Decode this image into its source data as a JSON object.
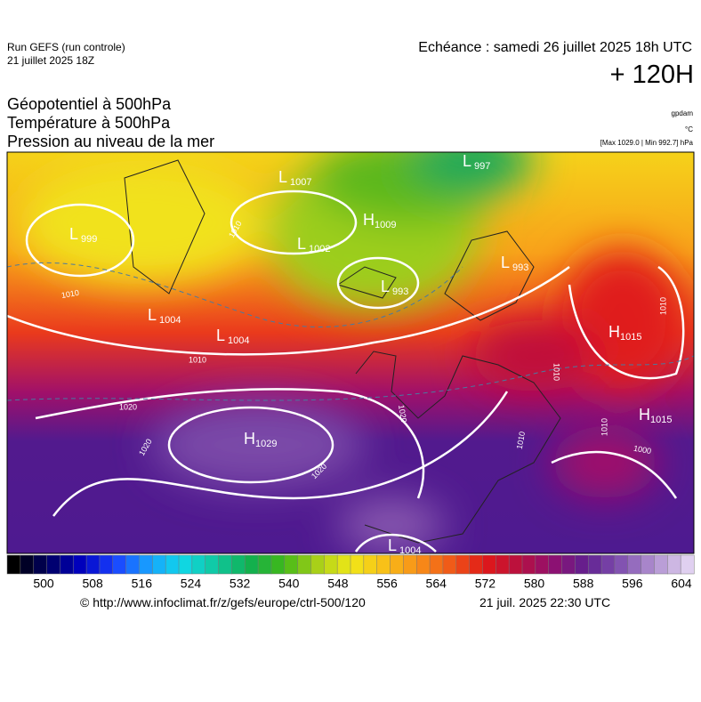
{
  "header": {
    "run": "Run GEFS (run controle)",
    "run_date": "21 juillet 2025 18Z",
    "valid": "Echéance : samedi 26 juillet 2025 18h UTC",
    "lead": "+ 120H",
    "fields": [
      "Géopotentiel à 500hPa",
      "Température à 500hPa",
      "Pression au niveau de la mer"
    ],
    "units": [
      "gpdam",
      "°C"
    ],
    "extremes": "[Max 1029.0 | Min 992.7] hPa"
  },
  "map": {
    "pressure_centers": [
      {
        "kind": "L",
        "value": 997
      },
      {
        "kind": "L",
        "value": 1007
      },
      {
        "kind": "L",
        "value": 999
      },
      {
        "kind": "H",
        "value": 1009
      },
      {
        "kind": "L",
        "value": 1002
      },
      {
        "kind": "L",
        "value": 993
      },
      {
        "kind": "L",
        "value": 993
      },
      {
        "kind": "L",
        "value": 1004
      },
      {
        "kind": "L",
        "value": 1004
      },
      {
        "kind": "H",
        "value": 1015
      },
      {
        "kind": "H",
        "value": 1015
      },
      {
        "kind": "H",
        "value": 1029
      },
      {
        "kind": "L",
        "value": 1004
      }
    ],
    "isobar_labels": [
      1010,
      1010,
      1020,
      1020,
      1020,
      1010,
      1010,
      1010,
      1000,
      1020,
      1010,
      1010
    ]
  },
  "colorbar": {
    "ticks": [
      500,
      508,
      516,
      524,
      532,
      540,
      548,
      556,
      564,
      572,
      580,
      588,
      596,
      604
    ]
  },
  "footer": {
    "source": "© http://www.infoclimat.fr/z/gefs/europe/ctrl-500/120",
    "created": "21 juil. 2025 22:30 UTC"
  }
}
